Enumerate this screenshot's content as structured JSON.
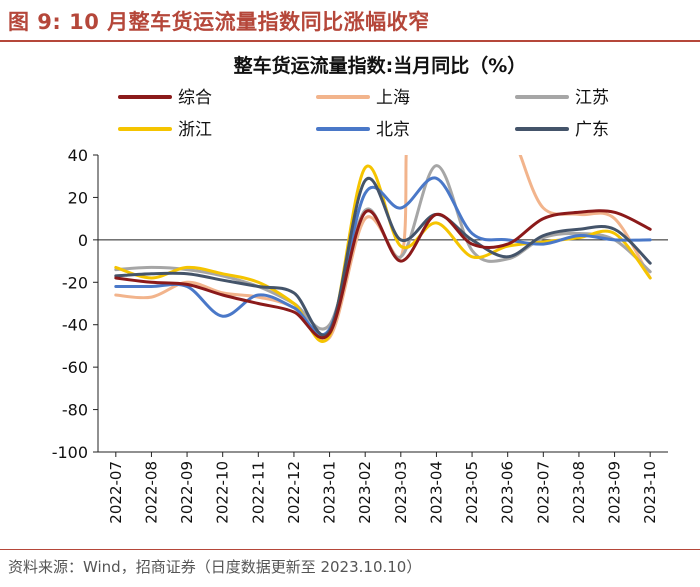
{
  "figure": {
    "label": "图 9:",
    "title": "10 月整车货运流量指数同比涨幅收窄",
    "source": "资料来源：Wind，招商证券（日度数据更新至 2023.10.10）"
  },
  "colors": {
    "accent": "#b5473a",
    "综合": "#8b1a1a",
    "上海": "#f2b48c",
    "江苏": "#a6a6a6",
    "浙江": "#f5c400",
    "北京": "#4a78c8",
    "广东": "#44546a"
  },
  "chart_data": {
    "type": "line",
    "title": "整车货运流量指数:当月同比（%）",
    "xlabel": "",
    "ylabel": "",
    "ylim": [
      -100,
      40
    ],
    "yticks": [
      40,
      20,
      0,
      -20,
      -40,
      -60,
      -80,
      -100
    ],
    "categories": [
      "2022-07",
      "2022-08",
      "2022-09",
      "2022-10",
      "2022-11",
      "2022-12",
      "2023-01",
      "2023-02",
      "2023-03",
      "2023-04",
      "2023-05",
      "2023-06",
      "2023-07",
      "2023-08",
      "2023-09",
      "2023-10"
    ],
    "legend": [
      "综合",
      "上海",
      "江苏",
      "浙江",
      "北京",
      "广东"
    ],
    "series": [
      {
        "name": "综合",
        "color": "#8b1a1a",
        "points": [
          [
            0,
            -18
          ],
          [
            1,
            -20
          ],
          [
            2,
            -21
          ],
          [
            3,
            -26
          ],
          [
            4,
            -30
          ],
          [
            5,
            -34
          ],
          [
            6,
            -44
          ],
          [
            7,
            13
          ],
          [
            8,
            -10
          ],
          [
            9,
            12
          ],
          [
            10,
            -2
          ],
          [
            11,
            -2
          ],
          [
            12,
            10
          ],
          [
            13,
            13
          ],
          [
            14,
            13
          ],
          [
            15,
            5
          ]
        ]
      },
      {
        "name": "上海",
        "color": "#f2b48c",
        "points": [
          [
            0,
            -26
          ],
          [
            1,
            -27
          ],
          [
            2,
            -20
          ],
          [
            3,
            -25
          ],
          [
            4,
            -27
          ],
          [
            5,
            -32
          ],
          [
            6,
            -46
          ],
          [
            7,
            10
          ],
          [
            8,
            -8
          ],
          [
            8.15,
            40
          ]
        ],
        "points2": [
          [
            11.35,
            40
          ],
          [
            12,
            15
          ],
          [
            13,
            12
          ],
          [
            14,
            10
          ],
          [
            15,
            -18
          ]
        ]
      },
      {
        "name": "江苏",
        "color": "#a6a6a6",
        "points": [
          [
            0,
            -14
          ],
          [
            1,
            -13
          ],
          [
            2,
            -14
          ],
          [
            3,
            -17
          ],
          [
            4,
            -22
          ],
          [
            5,
            -30
          ],
          [
            6,
            -40
          ],
          [
            7,
            14
          ],
          [
            8,
            -8
          ],
          [
            9,
            35
          ],
          [
            10,
            -5
          ],
          [
            11,
            -9
          ],
          [
            12,
            1
          ],
          [
            13,
            3
          ],
          [
            14,
            0
          ],
          [
            15,
            -15
          ]
        ]
      },
      {
        "name": "浙江",
        "color": "#f5c400",
        "points": [
          [
            0,
            -13
          ],
          [
            1,
            -18
          ],
          [
            2,
            -13
          ],
          [
            3,
            -16
          ],
          [
            4,
            -20
          ],
          [
            5,
            -30
          ],
          [
            6,
            -45
          ],
          [
            7,
            34
          ],
          [
            8,
            -3
          ],
          [
            9,
            8
          ],
          [
            10,
            -8
          ],
          [
            11,
            -3
          ],
          [
            12,
            -1
          ],
          [
            13,
            1
          ],
          [
            14,
            3
          ],
          [
            15,
            -18
          ]
        ]
      },
      {
        "name": "北京",
        "color": "#4a78c8",
        "points": [
          [
            0,
            -22
          ],
          [
            1,
            -22
          ],
          [
            2,
            -22
          ],
          [
            3,
            -36
          ],
          [
            4,
            -26
          ],
          [
            5,
            -32
          ],
          [
            6,
            -42
          ],
          [
            7,
            22
          ],
          [
            8,
            15
          ],
          [
            9,
            29
          ],
          [
            10,
            3
          ],
          [
            11,
            0
          ],
          [
            12,
            -2
          ],
          [
            13,
            2
          ],
          [
            14,
            0
          ],
          [
            15,
            0
          ]
        ]
      },
      {
        "name": "广东",
        "color": "#44546a",
        "points": [
          [
            0,
            -17
          ],
          [
            1,
            -16
          ],
          [
            2,
            -16
          ],
          [
            3,
            -19
          ],
          [
            4,
            -22
          ],
          [
            5,
            -25
          ],
          [
            6,
            -43
          ],
          [
            7,
            28
          ],
          [
            8,
            0
          ],
          [
            9,
            12
          ],
          [
            10,
            0
          ],
          [
            11,
            -8
          ],
          [
            12,
            2
          ],
          [
            13,
            5
          ],
          [
            14,
            5
          ],
          [
            15,
            -11
          ]
        ]
      }
    ]
  }
}
